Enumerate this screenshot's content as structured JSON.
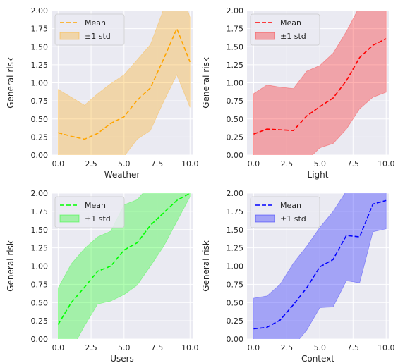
{
  "figure": {
    "background": "#ffffff",
    "plot_background": "#eaeaf2",
    "grid_color": "#ffffff"
  },
  "chart_data": [
    {
      "type": "line",
      "xlabel": "Weather",
      "ylabel": "General risk",
      "xlim": [
        -0.5,
        10.2
      ],
      "ylim": [
        0,
        2.0
      ],
      "xticks": [
        0.0,
        2.5,
        5.0,
        7.5,
        10.0
      ],
      "xticklabels": [
        "0.0",
        "2.5",
        "5.0",
        "7.5",
        "10.0"
      ],
      "yticks": [
        0,
        0.25,
        0.5,
        0.75,
        1.0,
        1.25,
        1.5,
        1.75,
        2.0
      ],
      "yticklabels": [
        "0.00",
        "0.25",
        "0.50",
        "0.75",
        "1.00",
        "1.25",
        "1.50",
        "1.75",
        "2.00"
      ],
      "grid": true,
      "legend_position": "top-left",
      "color": "#ffa500",
      "x": [
        0,
        1,
        2,
        3,
        4,
        5,
        6,
        7,
        8,
        9,
        10
      ],
      "series": [
        {
          "name": "Mean",
          "style": "dashed",
          "values": [
            0.31,
            0.26,
            0.22,
            0.3,
            0.44,
            0.53,
            0.76,
            0.93,
            1.33,
            1.75,
            1.29
          ]
        },
        {
          "name": "±1 std",
          "style": "band",
          "lower": [
            -0.28,
            -0.4,
            -0.25,
            -0.35,
            -0.15,
            -0.02,
            0.22,
            0.34,
            0.74,
            1.11,
            0.66
          ],
          "upper": [
            0.91,
            0.8,
            0.69,
            0.85,
            0.99,
            1.11,
            1.32,
            1.53,
            2.02,
            2.45,
            1.91
          ]
        }
      ]
    },
    {
      "type": "line",
      "xlabel": "Light",
      "ylabel": "General risk",
      "xlim": [
        -0.5,
        10.2
      ],
      "ylim": [
        0,
        2.0
      ],
      "xticks": [
        0.0,
        2.5,
        5.0,
        7.5,
        10.0
      ],
      "xticklabels": [
        "0.0",
        "2.5",
        "5.0",
        "7.5",
        "10.0"
      ],
      "yticks": [
        0,
        0.25,
        0.5,
        0.75,
        1.0,
        1.25,
        1.5,
        1.75,
        2.0
      ],
      "yticklabels": [
        "0.00",
        "0.25",
        "0.50",
        "0.75",
        "1.00",
        "1.25",
        "1.50",
        "1.75",
        "2.00"
      ],
      "grid": true,
      "legend_position": "top-left",
      "color": "#ff0000",
      "x": [
        0,
        1,
        2,
        3,
        4,
        5,
        6,
        7,
        8,
        9,
        10
      ],
      "series": [
        {
          "name": "Mean",
          "style": "dashed",
          "values": [
            0.29,
            0.36,
            0.35,
            0.34,
            0.54,
            0.67,
            0.79,
            1.03,
            1.35,
            1.52,
            1.61
          ]
        },
        {
          "name": "±1 std",
          "style": "band",
          "lower": [
            -0.27,
            -0.25,
            -0.28,
            -0.24,
            -0.08,
            0.1,
            0.16,
            0.36,
            0.64,
            0.8,
            0.87
          ],
          "upper": [
            0.85,
            0.97,
            0.94,
            0.92,
            1.16,
            1.24,
            1.41,
            1.71,
            2.06,
            2.24,
            2.34
          ]
        }
      ]
    },
    {
      "type": "line",
      "xlabel": "Users",
      "ylabel": "General risk",
      "xlim": [
        -0.5,
        10.2
      ],
      "ylim": [
        0,
        2.0
      ],
      "xticks": [
        0.0,
        2.5,
        5.0,
        7.5,
        10.0
      ],
      "xticklabels": [
        "0.0",
        "2.5",
        "5.0",
        "7.5",
        "10.0"
      ],
      "yticks": [
        0,
        0.25,
        0.5,
        0.75,
        1.0,
        1.25,
        1.5,
        1.75,
        2.0
      ],
      "yticklabels": [
        "0.00",
        "0.25",
        "0.50",
        "0.75",
        "1.00",
        "1.25",
        "1.50",
        "1.75",
        "2.00"
      ],
      "grid": true,
      "legend_position": "top-left",
      "color": "#00ff00",
      "x": [
        0,
        1,
        2,
        3,
        4,
        5,
        6,
        7,
        8,
        9,
        10
      ],
      "series": [
        {
          "name": "Mean",
          "style": "dashed",
          "values": [
            0.2,
            0.5,
            0.71,
            0.93,
            1.0,
            1.22,
            1.32,
            1.56,
            1.73,
            1.9,
            2.0
          ]
        },
        {
          "name": "±1 std",
          "style": "band",
          "lower": [
            -0.3,
            -0.15,
            0.18,
            0.48,
            0.52,
            0.61,
            0.74,
            1.0,
            1.27,
            1.61,
            1.95
          ],
          "upper": [
            0.7,
            1.03,
            1.24,
            1.4,
            1.48,
            1.84,
            1.91,
            2.12,
            2.19,
            2.2,
            2.05
          ]
        }
      ]
    },
    {
      "type": "line",
      "xlabel": "Context",
      "ylabel": "General risk",
      "xlim": [
        -0.5,
        10.2
      ],
      "ylim": [
        0,
        2.0
      ],
      "xticks": [
        0.0,
        2.5,
        5.0,
        7.5,
        10.0
      ],
      "xticklabels": [
        "0.0",
        "2.5",
        "5.0",
        "7.5",
        "10.0"
      ],
      "yticks": [
        0,
        0.25,
        0.5,
        0.75,
        1.0,
        1.25,
        1.5,
        1.75,
        2.0
      ],
      "yticklabels": [
        "0.00",
        "0.25",
        "0.50",
        "0.75",
        "1.00",
        "1.25",
        "1.50",
        "1.75",
        "2.00"
      ],
      "grid": true,
      "legend_position": "top-left",
      "color": "#0000ff",
      "x": [
        0,
        1,
        2,
        3,
        4,
        5,
        6,
        7,
        8,
        9,
        10
      ],
      "series": [
        {
          "name": "Mean",
          "style": "dashed",
          "values": [
            0.14,
            0.16,
            0.26,
            0.47,
            0.7,
            0.99,
            1.09,
            1.42,
            1.4,
            1.85,
            1.9
          ]
        },
        {
          "name": "±1 std",
          "style": "band",
          "lower": [
            -0.28,
            -0.27,
            -0.24,
            -0.1,
            0.12,
            0.43,
            0.44,
            0.8,
            0.77,
            1.47,
            1.51
          ],
          "upper": [
            0.56,
            0.59,
            0.75,
            1.04,
            1.27,
            1.53,
            1.75,
            2.03,
            2.04,
            2.24,
            2.3
          ]
        }
      ]
    }
  ]
}
